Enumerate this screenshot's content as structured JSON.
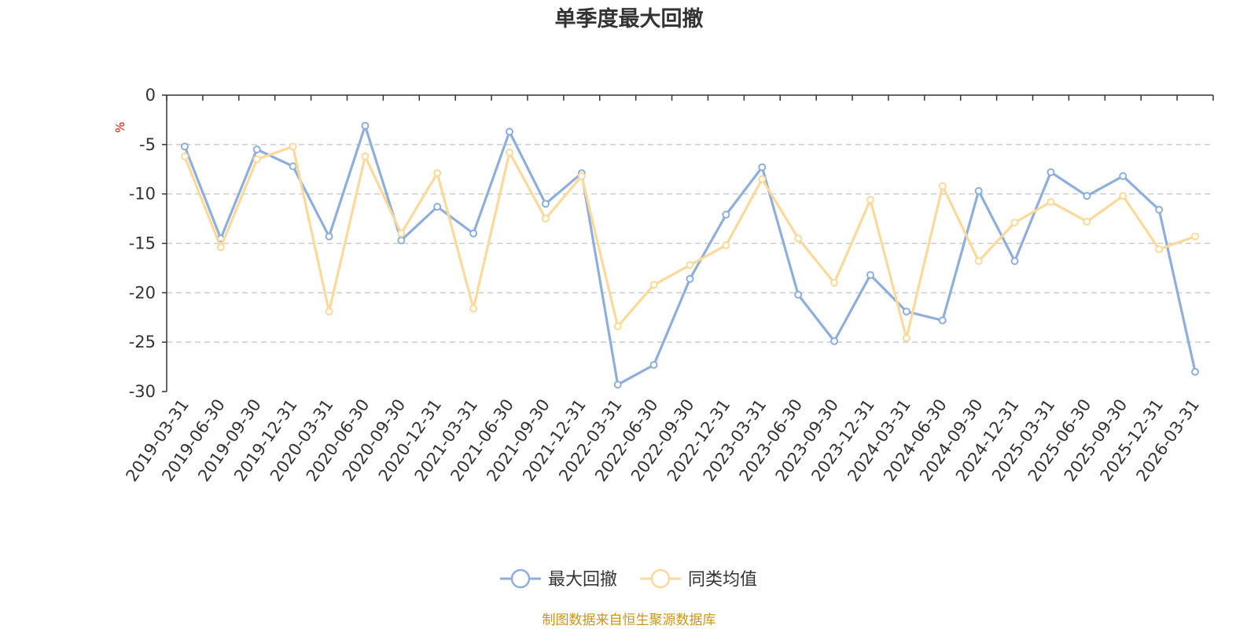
{
  "chart_data": {
    "type": "line",
    "title": "单季度最大回撤",
    "ylabel": "%",
    "ylim": [
      -30,
      0
    ],
    "yticks": [
      "0",
      "-5",
      "-10",
      "-15",
      "-20",
      "-25",
      "-30"
    ],
    "grid": true,
    "legend_position": "bottom",
    "categories": [
      "2019-03-31",
      "2019-06-30",
      "2019-09-30",
      "2019-12-31",
      "2020-03-31",
      "2020-06-30",
      "2020-09-30",
      "2020-12-31",
      "2021-03-31",
      "2021-06-30",
      "2021-09-30",
      "2021-12-31",
      "2022-03-31",
      "2022-06-30",
      "2022-09-30",
      "2022-12-31",
      "2023-03-31",
      "2023-06-30",
      "2023-09-30",
      "2023-12-31",
      "2024-03-31",
      "2024-06-30",
      "2024-09-30",
      "2024-12-31",
      "2025-03-31",
      "2025-06-30",
      "2025-09-30",
      "2025-12-31",
      "2026-03-31"
    ],
    "series": [
      {
        "name": "最大回撤",
        "color": "#8eaedb",
        "values": [
          -5.2,
          -14.5,
          -5.5,
          -7.2,
          -14.3,
          -3.1,
          -14.7,
          -11.3,
          -14.0,
          -3.7,
          -11.0,
          -7.9,
          -29.3,
          -27.3,
          -18.6,
          -12.1,
          -7.3,
          -20.2,
          -24.9,
          -18.2,
          -21.9,
          -22.8,
          -9.7,
          -16.8,
          -7.8,
          -10.2,
          -8.2,
          -11.6,
          -28.0
        ]
      },
      {
        "name": "同类均值",
        "color": "#fad99b",
        "values": [
          -6.2,
          -15.4,
          -6.5,
          -5.2,
          -21.9,
          -6.2,
          -14.0,
          -7.9,
          -21.6,
          -5.8,
          -12.5,
          -8.2,
          -23.4,
          -19.2,
          -17.2,
          -15.2,
          -8.5,
          -14.5,
          -19.0,
          -10.6,
          -24.6,
          -9.2,
          -16.8,
          -12.9,
          -10.8,
          -12.8,
          -10.2,
          -15.6,
          -14.3
        ]
      }
    ]
  },
  "source_text": "制图数据来自恒生聚源数据库"
}
